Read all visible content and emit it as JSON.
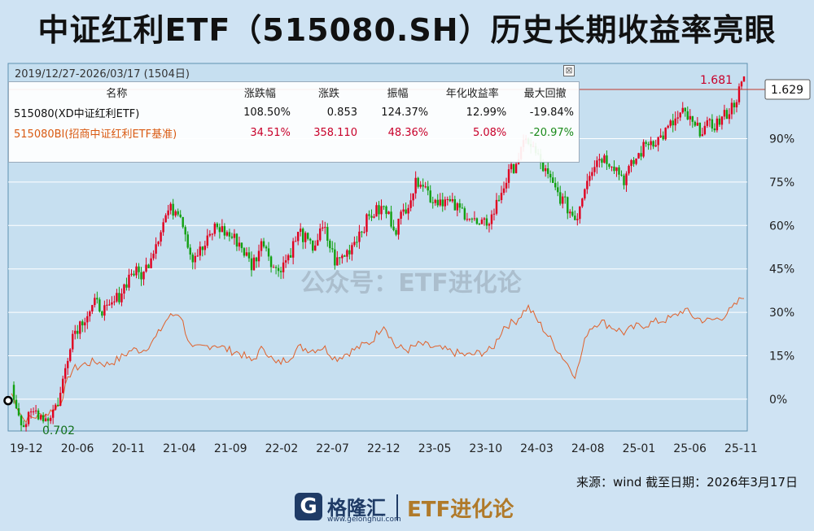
{
  "title": "中证红利ETF（515080.SH）历史长期收益率亮眼",
  "range_label": "2019/12/27-2026/03/17 (1504日)",
  "close_icon": "⊠",
  "table": {
    "headers": [
      "名称",
      "涨跌幅",
      "涨跌",
      "振幅",
      "年化收益率",
      "最大回撤"
    ],
    "rows": [
      {
        "name": "515080(XD中证红利ETF)",
        "chg_pct": "108.50%",
        "chg": "0.853",
        "amp": "124.37%",
        "annual": "12.99%",
        "mdd": "-19.84%"
      },
      {
        "name": "515080BI(招商中证红利ETF基准)",
        "chg_pct": "34.51%",
        "chg": "358.110",
        "amp": "48.36%",
        "annual": "5.08%",
        "mdd": "-20.97%"
      }
    ]
  },
  "watermark": "公众号：ETF进化论",
  "source": "来源：wind  截至日期：2026年3月17日",
  "footer": {
    "logo_mark": "G",
    "logo_cn": "格隆汇",
    "logo_url": "www.gelonghui.com",
    "right": "ETF进化论"
  },
  "colors": {
    "etf_up": "#e0001f",
    "etf_down": "#11a011",
    "benchmark": "#e0602a"
  },
  "chart_data": {
    "type": "line",
    "title": "中证红利ETF（515080.SH）历史长期收益率亮眼",
    "x_ticks": [
      "19-12",
      "20-06",
      "20-11",
      "21-04",
      "21-09",
      "22-02",
      "22-07",
      "22-12",
      "23-05",
      "23-10",
      "24-03",
      "24-08",
      "25-01",
      "25-06",
      "25-11"
    ],
    "y_ticks": [
      "0%",
      "15%",
      "30%",
      "45%",
      "60%",
      "75%",
      "90%"
    ],
    "y_tick_values": [
      0,
      15,
      30,
      45,
      60,
      75,
      90
    ],
    "ylim": [
      -11,
      116
    ],
    "annotations": {
      "max": "1.681",
      "min": "0.702",
      "last": "1.629"
    },
    "series": [
      {
        "name": "515080(XD中证红利ETF)",
        "style": "candlestick",
        "values": [
          3,
          -9,
          -4,
          -7,
          0,
          22,
          28,
          33,
          30,
          36,
          44,
          43,
          54,
          65,
          66,
          49,
          52,
          60,
          57,
          54,
          46,
          55,
          44,
          49,
          58,
          52,
          59,
          47,
          51,
          58,
          64,
          66,
          59,
          68,
          77,
          69,
          69,
          66,
          64,
          59,
          63,
          74,
          82,
          90,
          82,
          74,
          68,
          62,
          78,
          84,
          82,
          76,
          83,
          89,
          90,
          95,
          99,
          93,
          94,
          96,
          101,
          110
        ]
      },
      {
        "name": "515080BI(招商中证红利ETF基准)",
        "style": "line",
        "values": [
          2,
          -7,
          -6,
          -5,
          -2,
          10,
          12,
          13,
          12,
          14,
          17,
          17,
          21,
          28,
          30,
          17,
          18,
          19,
          17,
          16,
          13,
          18,
          12,
          14,
          18,
          17,
          18,
          14,
          16,
          18,
          20,
          26,
          18,
          17,
          19,
          18,
          17,
          16,
          15,
          16,
          17,
          25,
          27,
          32,
          26,
          20,
          14,
          8,
          24,
          27,
          25,
          23,
          25,
          26,
          27,
          28,
          31,
          28,
          27,
          28,
          31,
          36
        ]
      }
    ]
  }
}
